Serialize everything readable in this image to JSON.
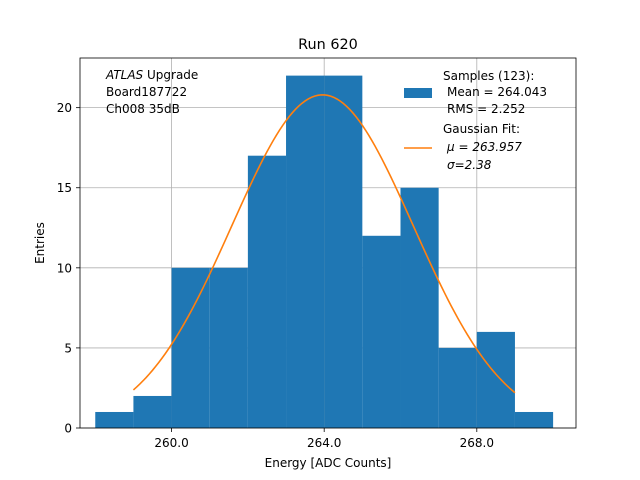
{
  "chart_data": {
    "type": "bar",
    "title": "Run 620",
    "xlabel": "Energy [ADC Counts]",
    "ylabel": "Entries",
    "xlim": [
      257.6,
      270.6
    ],
    "ylim": [
      0,
      23.1
    ],
    "x_ticks": [
      260.0,
      264.0,
      268.0
    ],
    "x_tick_labels": [
      "260.0",
      "264.0",
      "268.0"
    ],
    "y_ticks": [
      0,
      5,
      10,
      15,
      20
    ],
    "y_tick_labels": [
      "0",
      "5",
      "10",
      "15",
      "20"
    ],
    "grid": true,
    "bin_edges": [
      258,
      259,
      260,
      261,
      262,
      263,
      264,
      265,
      266,
      267,
      268,
      269,
      270
    ],
    "counts": [
      1,
      2,
      10,
      10,
      17,
      22,
      22,
      12,
      15,
      5,
      6,
      1
    ],
    "bar_color": "#1f77b4",
    "fit": {
      "type": "gaussian",
      "amplitude": 20.8,
      "mu": 263.957,
      "sigma": 2.38,
      "x_range": [
        259,
        269
      ],
      "color": "#ff7f0e"
    },
    "annotation_lines": [
      "ATLAS Upgrade",
      "Board187722",
      "Ch008 35dB"
    ],
    "legend": {
      "placement": "top-right",
      "samples_lines": [
        "Samples (123):",
        "Mean = 264.043",
        "RMS = 2.252"
      ],
      "fit_lines": [
        "Gaussian Fit:",
        "μ = 263.957",
        "σ=2.38"
      ]
    }
  }
}
